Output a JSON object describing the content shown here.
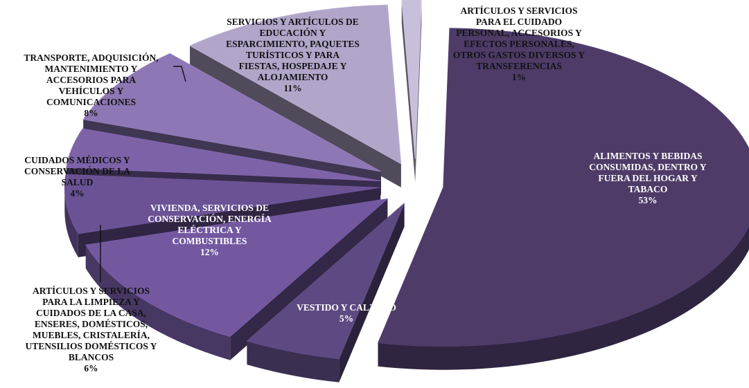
{
  "chart_data": {
    "type": "pie",
    "title": "",
    "style": "3d-exploded",
    "slices": [
      {
        "label": "ALIMENTOS Y BEBIDAS\nCONSUMIDAS,  DENTRO Y\nFUERA DEL HOGAR Y\nTABACO",
        "percent_label": "53%",
        "value": 53,
        "color": "#4e3b68"
      },
      {
        "label": "VESTIDO Y CALZADO",
        "percent_label": "5%",
        "value": 5,
        "color": "#5e4a82"
      },
      {
        "label": "VIVIENDA, SERVICIOS DE\nCONSERVACIÓN, ENERGÍA\nELÉCTRICA Y\nCOMBUSTIBLES",
        "percent_label": "12%",
        "value": 12,
        "color": "#7358a0"
      },
      {
        "label": "ARTÍCULOS Y SERVICIOS\nPARA LA LIMPIEZA Y\nCUIDADOS DE LA CASA,\nENSERES, DOMÉSTICOS,\nMUEBLES, CRISTALERÍA,\nUTENSILIOS DOMÉSTICOS Y\nBLANCOS",
        "percent_label": "6%",
        "value": 6,
        "color": "#6a5294"
      },
      {
        "label": "CUIDADOS MÉDICOS Y\nCONSERVACIÓN DE LA\nSALUD",
        "percent_label": "4%",
        "value": 4,
        "color": "#7d62a8"
      },
      {
        "label": "TRANSPORTE, ADQUISICIÓN,\nMANTENIMIENTO Y\nACCESORIOS PARA\nVEHÍCULOS Y\nCOMUNICACIONES",
        "percent_label": "8%",
        "value": 8,
        "color": "#8d77b4"
      },
      {
        "label": "SERVICIOS Y ARTÍCULOS DE\nEDUCACIÓN Y\nESPARCIMIENTO, PAQUETES\nTURÍSTICOS Y PARA\nFIESTAS, HOSPEDAJE Y\nALOJAMIENTO",
        "percent_label": "11%",
        "value": 11,
        "color": "#b1a5c9"
      },
      {
        "label": "ARTÍCULOS Y SERVICIOS\nPARA EL CUIDADO\nPERSONAL, ACCESORIOS Y\nEFECTOS PERSONALES,\nOTROS GASTOS DIVERSOS  Y\nTRANSFERENCIAS",
        "percent_label": "1%",
        "value": 1,
        "color": "#c8bfdb"
      }
    ]
  }
}
